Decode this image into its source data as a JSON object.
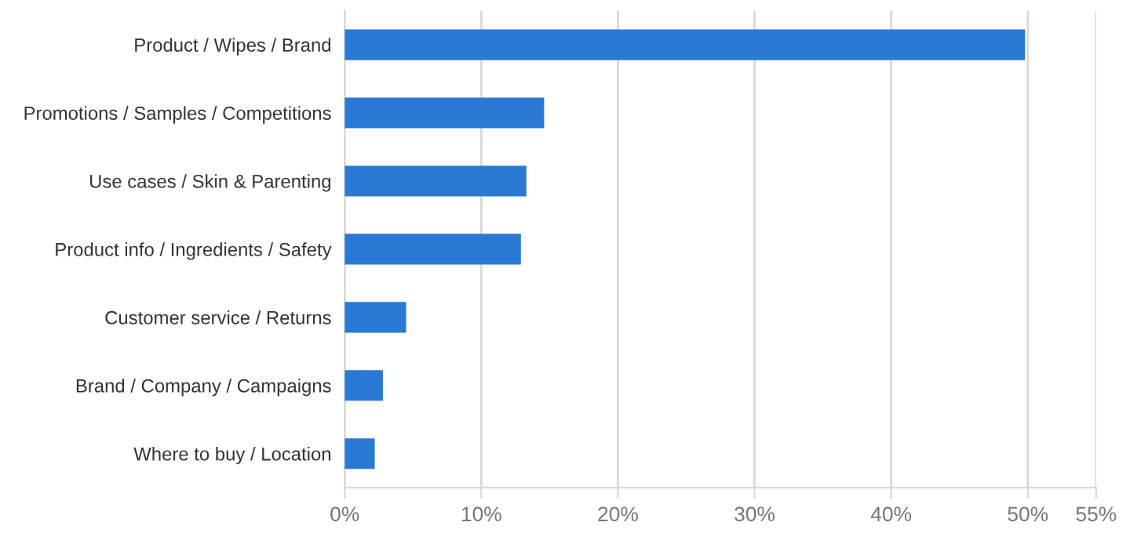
{
  "chart_data": {
    "type": "bar",
    "orientation": "horizontal",
    "categories": [
      "Product / Wipes / Brand",
      "Promotions / Samples / Competitions",
      "Use cases / Skin & Parenting",
      "Product info / Ingredients / Safety",
      "Customer service / Returns",
      "Brand / Company / Campaigns",
      "Where to buy / Location"
    ],
    "values": [
      49.8,
      14.6,
      13.3,
      12.9,
      4.5,
      2.8,
      2.2
    ],
    "color": "#2a7ad5",
    "xlim": [
      0,
      55
    ],
    "xticks": [
      {
        "value": 0,
        "label": "0%"
      },
      {
        "value": 10,
        "label": "10%"
      },
      {
        "value": 20,
        "label": "20%"
      },
      {
        "value": 30,
        "label": "30%"
      },
      {
        "value": 40,
        "label": "40%"
      },
      {
        "value": 50,
        "label": "50%"
      },
      {
        "value": 55,
        "label": "55%"
      }
    ],
    "grid": "x",
    "legend": false
  }
}
